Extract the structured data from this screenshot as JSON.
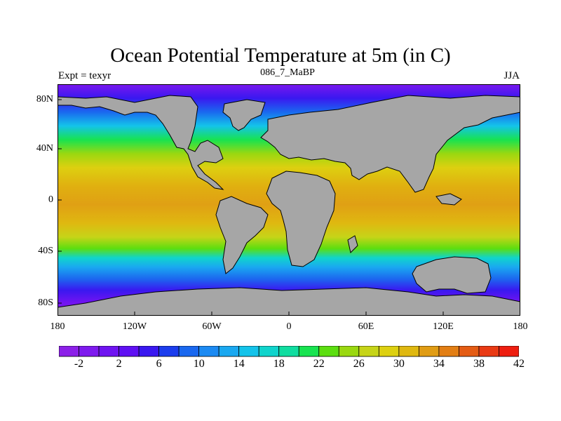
{
  "title": "Ocean Potential Temperature at 5m (in C)",
  "subtitle_left": "Expt = texyr",
  "subtitle_center": "086_7_MaBP",
  "subtitle_right": "JJA",
  "map_data": {
    "type": "filled-contour-map",
    "lon_range": [
      -180,
      180
    ],
    "lat_range": [
      -90,
      90
    ],
    "y_ticks": [
      {
        "lat": 80,
        "label": "80N"
      },
      {
        "lat": 40,
        "label": "40N"
      },
      {
        "lat": 0,
        "label": "0"
      },
      {
        "lat": -40,
        "label": "40S"
      },
      {
        "lat": -80,
        "label": "80S"
      }
    ],
    "x_ticks": [
      {
        "lon": -180,
        "label": "180"
      },
      {
        "lon": -120,
        "label": "120W"
      },
      {
        "lon": -60,
        "label": "60W"
      },
      {
        "lon": 0,
        "label": "0"
      },
      {
        "lon": 60,
        "label": "60E"
      },
      {
        "lon": 120,
        "label": "120E"
      },
      {
        "lon": 180,
        "label": "180"
      }
    ],
    "land_color": "#a6a6a6",
    "colorbar": {
      "colors": [
        "#8c20e8",
        "#7e1aee",
        "#6f14f1",
        "#5f10f3",
        "#3a18f0",
        "#1c3ded",
        "#1a68ef",
        "#1c8af2",
        "#1aa8f0",
        "#14c3ea",
        "#10d4cc",
        "#10dda0",
        "#18e350",
        "#5cde10",
        "#9ad810",
        "#c6d418",
        "#ddd010",
        "#dfb810",
        "#e09c14",
        "#e27e14",
        "#e45c14",
        "#e93a14",
        "#ee1e10"
      ],
      "label_values": [
        "-2",
        "2",
        "6",
        "10",
        "14",
        "18",
        "22",
        "26",
        "30",
        "34",
        "38",
        "42"
      ]
    }
  }
}
